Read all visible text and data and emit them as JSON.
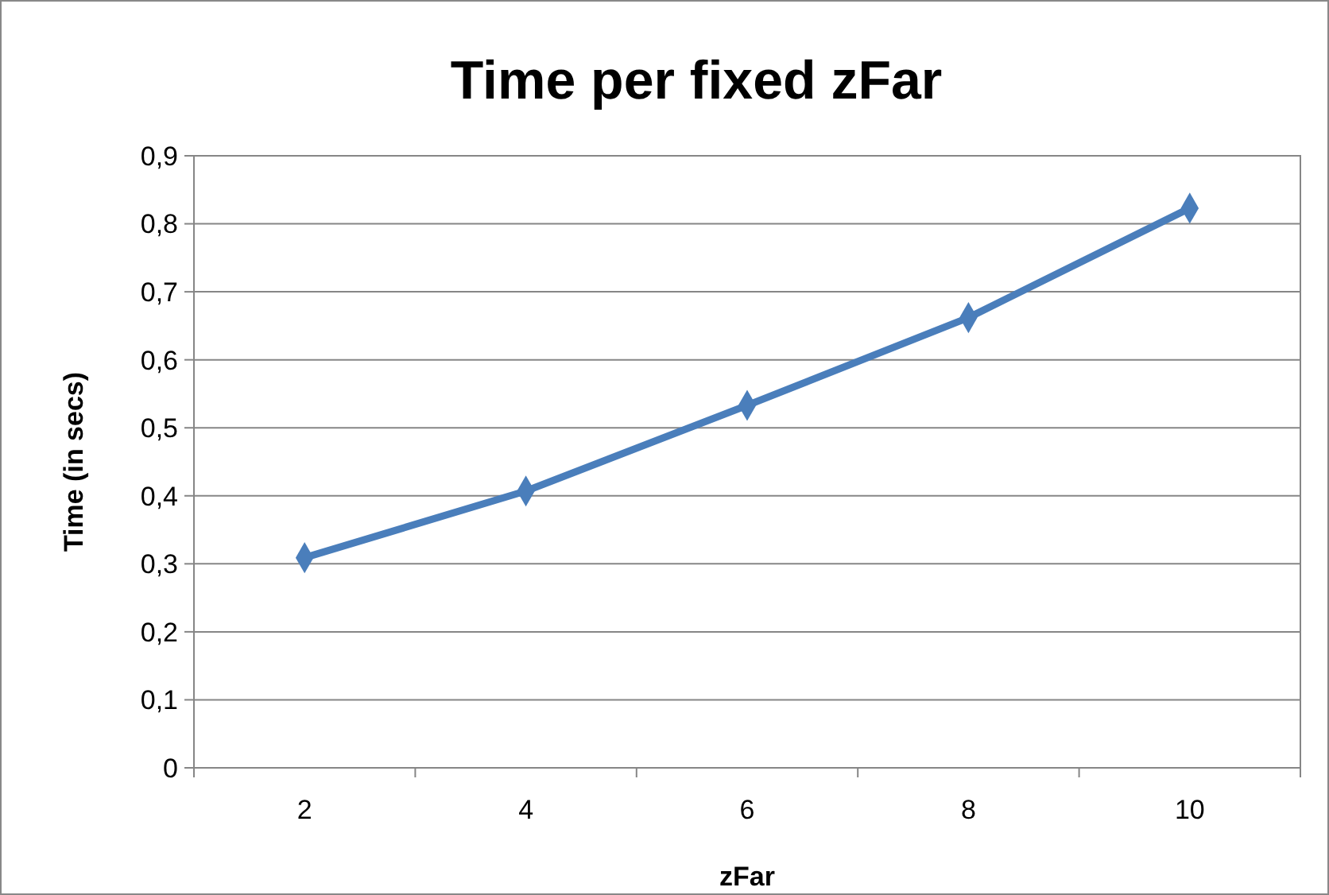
{
  "chart_data": {
    "type": "line",
    "title": "Time per fixed zFar",
    "xlabel": "zFar",
    "ylabel": "Time (in secs)",
    "categories": [
      "2",
      "4",
      "6",
      "8",
      "10"
    ],
    "series": [
      {
        "color": "#4a7ebb",
        "values": [
          0.309,
          0.407,
          0.533,
          0.662,
          0.823
        ]
      }
    ],
    "ylim": [
      0,
      0.9
    ],
    "yticks": [
      0,
      {
        "value": 0.1,
        "label": "0,1"
      },
      {
        "value": 0.2,
        "label": "0,2"
      },
      {
        "value": 0.3,
        "label": "0,3"
      },
      {
        "value": 0.4,
        "label": "0,4"
      },
      {
        "value": 0.5,
        "label": "0,5"
      },
      {
        "value": 0.6,
        "label": "0,6"
      },
      {
        "value": 0.7,
        "label": "0,7"
      },
      {
        "value": 0.8,
        "label": "0,8"
      },
      {
        "value": 0.9,
        "label": "0,9"
      }
    ],
    "grid": "y",
    "marker": "diamond",
    "line_style": "solid"
  }
}
